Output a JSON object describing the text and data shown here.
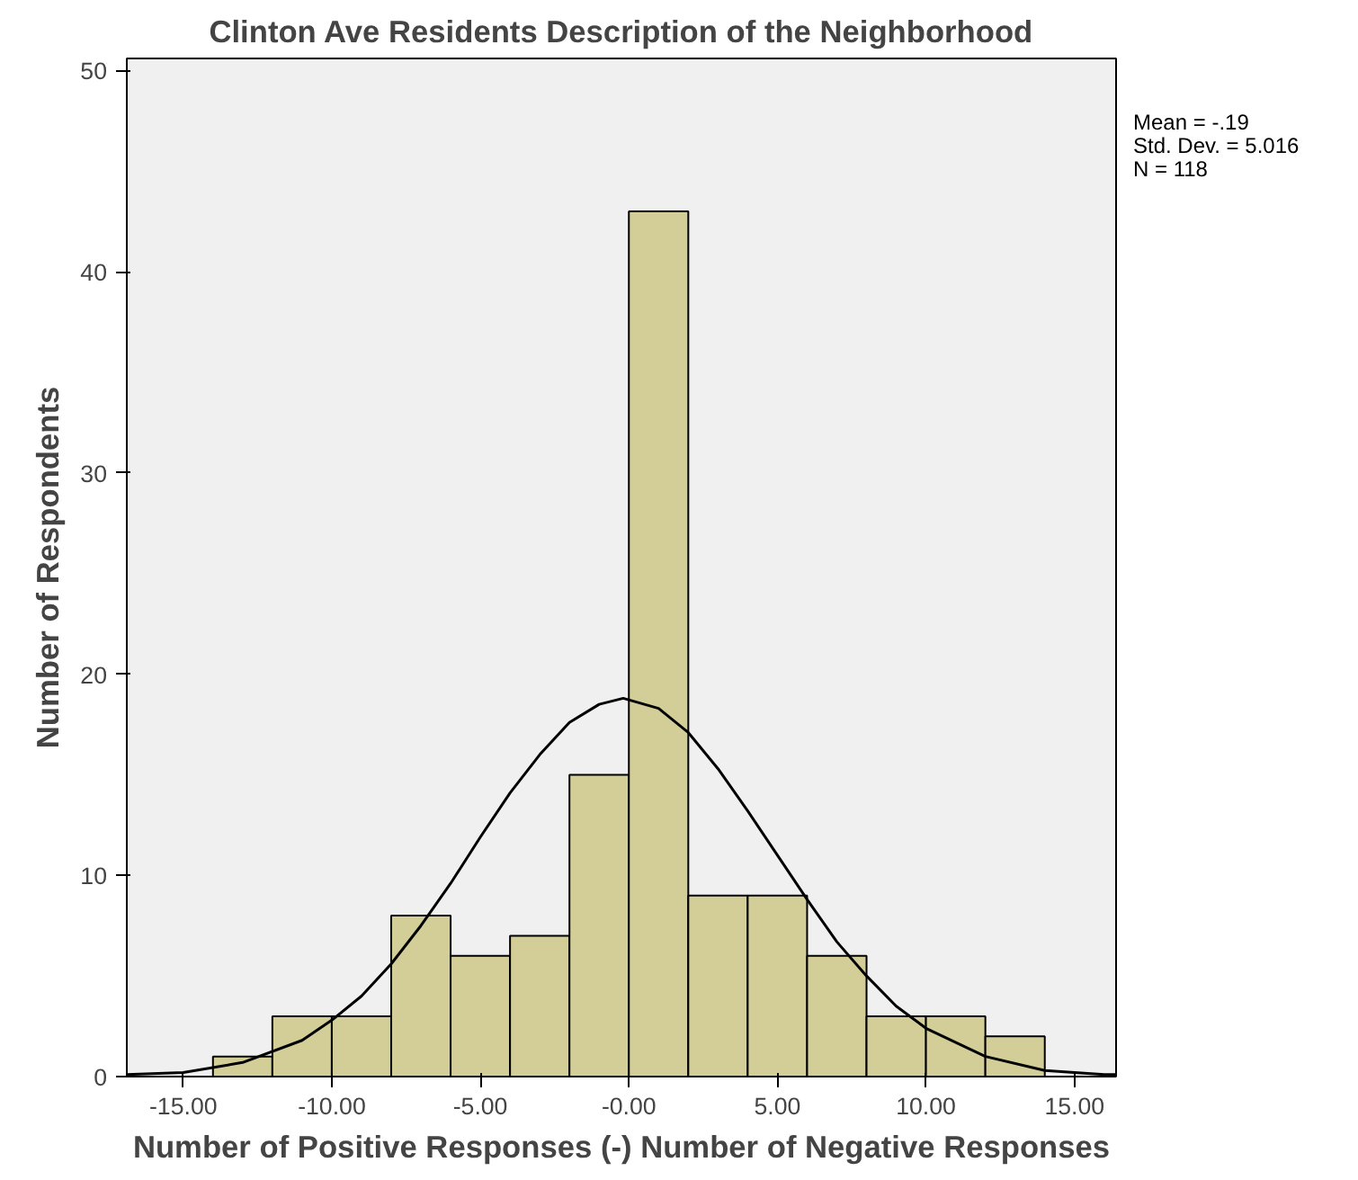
{
  "chart_data": {
    "type": "histogram",
    "title": "Clinton Ave Residents Description of the Neighborhood",
    "xlabel": "Number of Positive Responses (-) Number of Negative Responses",
    "ylabel": "Number of Respondents",
    "bins": [
      -14,
      -12,
      -10,
      -8,
      -6,
      -4,
      -2,
      0,
      2,
      4,
      6,
      8,
      10,
      12,
      14
    ],
    "values": [
      1,
      3,
      3,
      8,
      6,
      7,
      15,
      43,
      9,
      9,
      6,
      3,
      3,
      2
    ],
    "color": "#d3ce97",
    "series": [
      {
        "type": "line",
        "color": "#000000",
        "x": [
          -16.9,
          -15,
          -13,
          -11,
          -10,
          -9,
          -8,
          -7,
          -6,
          -5,
          -4,
          -3,
          -2,
          -1,
          -0.19,
          1,
          2,
          3,
          4,
          5,
          6,
          7,
          8,
          9,
          10,
          12,
          14,
          16,
          16.4
        ],
        "values": [
          0.1,
          0.2,
          0.7,
          1.8,
          2.8,
          4.0,
          5.6,
          7.5,
          9.6,
          11.9,
          14.1,
          16.0,
          17.6,
          18.5,
          18.8,
          18.3,
          17.1,
          15.3,
          13.2,
          11.0,
          8.8,
          6.7,
          5.0,
          3.5,
          2.4,
          1.0,
          0.3,
          0.1,
          0.1
        ]
      }
    ],
    "xlim": [
      -16.9,
      16.4
    ],
    "ylim": [
      0,
      50.6
    ],
    "xticks": [
      {
        "value": -15,
        "label": "-15.00"
      },
      {
        "value": -10,
        "label": "-10.00"
      },
      {
        "value": -5,
        "label": "-5.00"
      },
      {
        "value": 0,
        "label": "-0.00"
      },
      {
        "value": 5,
        "label": "5.00"
      },
      {
        "value": 10,
        "label": "10.00"
      },
      {
        "value": 15,
        "label": "15.00"
      }
    ],
    "yticks": [
      0,
      10,
      20,
      30,
      40,
      50
    ],
    "annotations": [
      "Mean = -.19",
      "Std. Dev. = 5.016",
      "N = 118"
    ],
    "grid": false
  }
}
